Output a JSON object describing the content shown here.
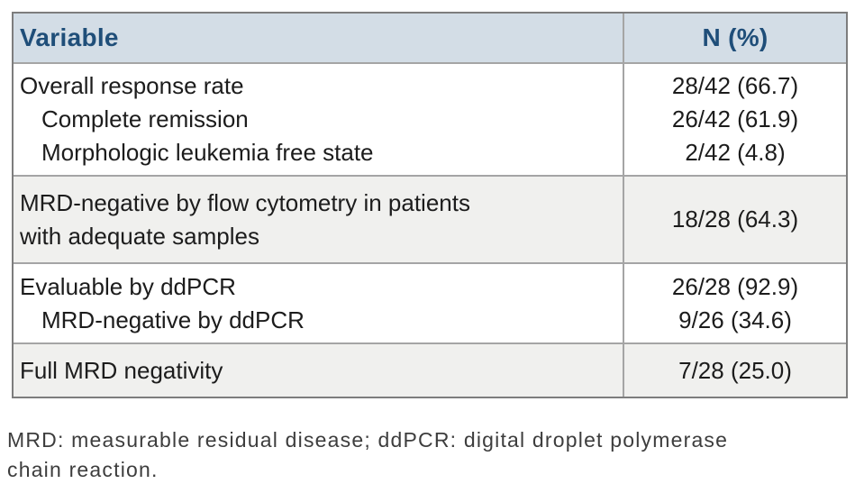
{
  "table": {
    "columns": [
      "Variable",
      "N (%)"
    ],
    "rows": [
      {
        "label_lines": [
          "Overall response rate",
          "Complete remission",
          "Morphologic leukemia free state"
        ],
        "values": [
          "28/42 (66.7)",
          "26/42 (61.9)",
          "2/42 (4.8)"
        ]
      },
      {
        "label_lines": [
          "MRD-negative by flow cytometry in patients",
          "with adequate samples"
        ],
        "values": [
          "18/28 (64.3)"
        ]
      },
      {
        "label_lines": [
          "Evaluable by ddPCR",
          "MRD-negative by ddPCR"
        ],
        "values": [
          "26/28 (92.9)",
          "9/26 (34.6)"
        ]
      },
      {
        "label_lines": [
          "Full MRD negativity"
        ],
        "values": [
          "7/28 (25.0)"
        ]
      }
    ]
  },
  "footnote": {
    "line1": "MRD: measurable residual disease; ddPCR: digital droplet polymerase",
    "line2": "chain reaction."
  },
  "colors": {
    "header_bg": "#d3dde6",
    "header_text": "#1f4e79",
    "shaded_row_bg": "#f0f0ee",
    "outer_border": "#7d7d7d",
    "inner_border": "#a5a5a5",
    "body_text": "#1c1c1c",
    "footnote_text": "#3d3d3d"
  }
}
